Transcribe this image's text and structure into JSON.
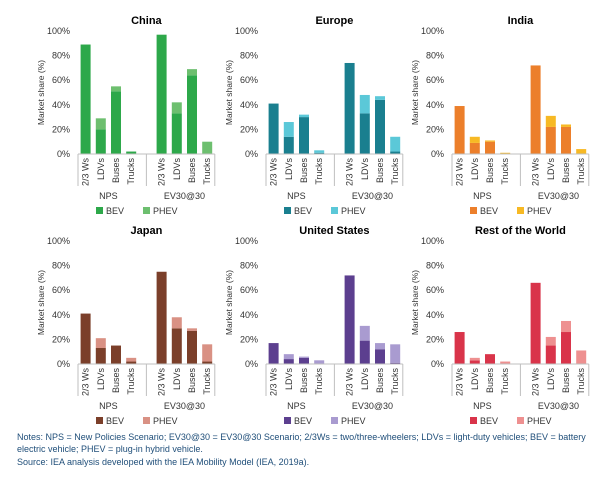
{
  "chart_data": [
    {
      "type": "bar",
      "stacked": true,
      "title": "China",
      "ylabel": "Market share (%)",
      "ylim": [
        0,
        100
      ],
      "yticks": [
        "0%",
        "20%",
        "40%",
        "60%",
        "80%",
        "100%"
      ],
      "categories": [
        "2/3 Ws",
        "LDVs",
        "Buses",
        "Trucks",
        "2/3 Ws",
        "LDVs",
        "Buses",
        "Trucks"
      ],
      "groups": [
        "NPS",
        "EV30@30"
      ],
      "series": [
        {
          "name": "BEV",
          "values": [
            89,
            20,
            51,
            2,
            97,
            33,
            64,
            0
          ]
        },
        {
          "name": "PHEV",
          "values": [
            0,
            9,
            4,
            0,
            0,
            9,
            5,
            10
          ]
        }
      ],
      "colors": [
        "#2da84a",
        "#6dbf6f"
      ],
      "legend": "bottom"
    },
    {
      "type": "bar",
      "stacked": true,
      "title": "Europe",
      "ylabel": "Market share (%)",
      "ylim": [
        0,
        100
      ],
      "yticks": [
        "0%",
        "20%",
        "40%",
        "60%",
        "80%",
        "100%"
      ],
      "categories": [
        "2/3 Ws",
        "LDVs",
        "Buses",
        "Trucks",
        "2/3 Ws",
        "LDVs",
        "Buses",
        "Trucks"
      ],
      "groups": [
        "NPS",
        "EV30@30"
      ],
      "series": [
        {
          "name": "BEV",
          "values": [
            41,
            14,
            30,
            1,
            74,
            33,
            44,
            2
          ]
        },
        {
          "name": "PHEV",
          "values": [
            0,
            12,
            2,
            2,
            0,
            15,
            3,
            12
          ]
        }
      ],
      "colors": [
        "#1a7f8f",
        "#5bc8d8"
      ],
      "legend": "bottom"
    },
    {
      "type": "bar",
      "stacked": true,
      "title": "India",
      "ylabel": "Market share (%)",
      "ylim": [
        0,
        100
      ],
      "yticks": [
        "0%",
        "20%",
        "40%",
        "60%",
        "80%",
        "100%"
      ],
      "categories": [
        "2/3 Ws",
        "LDVs",
        "Buses",
        "Trucks",
        "2/3 Ws",
        "LDVs",
        "Buses",
        "Trucks"
      ],
      "groups": [
        "NPS",
        "EV30@30"
      ],
      "series": [
        {
          "name": "BEV",
          "values": [
            39,
            9,
            10,
            0,
            72,
            22,
            22,
            0
          ]
        },
        {
          "name": "PHEV",
          "values": [
            0,
            5,
            1,
            1,
            0,
            9,
            2,
            4
          ]
        }
      ],
      "colors": [
        "#ec7f2b",
        "#f7b924"
      ],
      "legend": "bottom"
    },
    {
      "type": "bar",
      "stacked": true,
      "title": "Japan",
      "ylabel": "Market share (%)",
      "ylim": [
        0,
        100
      ],
      "yticks": [
        "0%",
        "20%",
        "40%",
        "60%",
        "80%",
        "100%"
      ],
      "categories": [
        "2/3 Ws",
        "LDVs",
        "Buses",
        "Trucks",
        "2/3 Ws",
        "LDVs",
        "Buses",
        "Trucks"
      ],
      "groups": [
        "NPS",
        "EV30@30"
      ],
      "series": [
        {
          "name": "BEV",
          "values": [
            41,
            13,
            15,
            2,
            75,
            29,
            27,
            2
          ]
        },
        {
          "name": "PHEV",
          "values": [
            0,
            8,
            0,
            3,
            0,
            9,
            2,
            14
          ]
        }
      ],
      "colors": [
        "#7b3f2a",
        "#d99184"
      ],
      "legend": "bottom"
    },
    {
      "type": "bar",
      "stacked": true,
      "title": "United States",
      "ylabel": "Market share (%)",
      "ylim": [
        0,
        100
      ],
      "yticks": [
        "0%",
        "20%",
        "40%",
        "60%",
        "80%",
        "100%"
      ],
      "categories": [
        "2/3 Ws",
        "LDVs",
        "Buses",
        "Trucks",
        "2/3 Ws",
        "LDVs",
        "Buses",
        "Trucks"
      ],
      "groups": [
        "NPS",
        "EV30@30"
      ],
      "series": [
        {
          "name": "BEV",
          "values": [
            17,
            4,
            5,
            0,
            72,
            19,
            12,
            1
          ]
        },
        {
          "name": "PHEV",
          "values": [
            0,
            4,
            1,
            3,
            0,
            12,
            5,
            15
          ]
        }
      ],
      "colors": [
        "#5c3f8f",
        "#a99bd0"
      ],
      "legend": "bottom"
    },
    {
      "type": "bar",
      "stacked": true,
      "title": "Rest of the World",
      "ylabel": "Market share (%)",
      "ylim": [
        0,
        100
      ],
      "yticks": [
        "0%",
        "20%",
        "40%",
        "60%",
        "80%",
        "100%"
      ],
      "categories": [
        "2/3 Ws",
        "LDVs",
        "Buses",
        "Trucks",
        "2/3 Ws",
        "LDVs",
        "Buses",
        "Trucks"
      ],
      "groups": [
        "NPS",
        "EV30@30"
      ],
      "series": [
        {
          "name": "BEV",
          "values": [
            26,
            3,
            8,
            0,
            66,
            15,
            26,
            0
          ]
        },
        {
          "name": "PHEV",
          "values": [
            0,
            2,
            0,
            2,
            0,
            7,
            9,
            11
          ]
        }
      ],
      "colors": [
        "#d9344a",
        "#ee9090"
      ],
      "legend": "bottom"
    }
  ],
  "notes": {
    "line1": "Notes: NPS = New Policies Scenario; EV30@30 = EV30@30 Scenario; 2/3Ws = two/three-wheelers; LDVs = light-duty vehicles; BEV = battery electric vehicle; PHEV = plug-in hybrid vehicle.",
    "line2": "Source: IEA analysis developed with the IEA Mobility Model (IEA, 2019a)."
  }
}
